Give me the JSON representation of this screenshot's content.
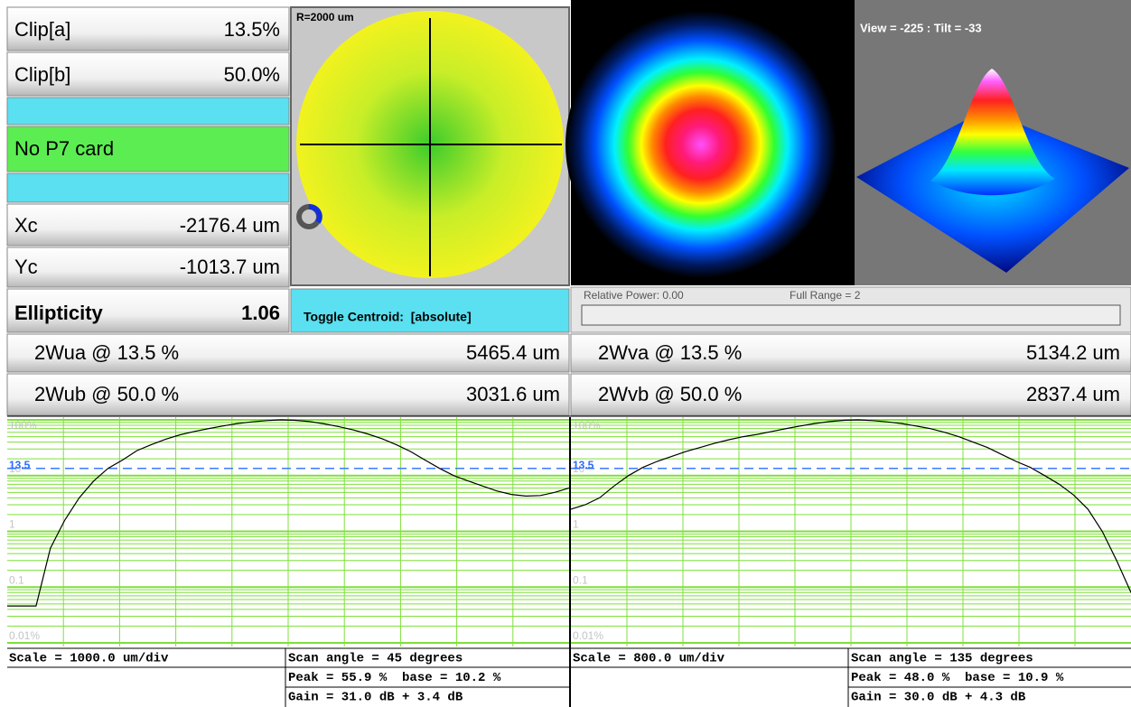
{
  "params": [
    {
      "label": "Clip[a]",
      "value": "13.5%"
    },
    {
      "label": "Clip[b]",
      "value": "50.0%"
    }
  ],
  "status": "No P7 card",
  "centroid": [
    {
      "label": "Xc",
      "value": "-2176.4 um"
    },
    {
      "label": "Yc",
      "value": "-1013.7 um"
    }
  ],
  "ellipticity": {
    "label": "Ellipticity",
    "value": "1.06"
  },
  "position_view": {
    "radius_label": "R=2000 um",
    "toggle": "Toggle Centroid:  [absolute]"
  },
  "view_3d": {
    "label": "View = -225 : Tilt = -33"
  },
  "power": {
    "relative": "Relative Power: 0.00",
    "range": "Full Range = 2"
  },
  "widths": [
    [
      {
        "label": "2Wua @ 13.5 %",
        "value": "5465.4 um"
      },
      {
        "label": "2Wub @ 50.0 %",
        "value": "3031.6 um"
      }
    ],
    [
      {
        "label": "2Wva @ 13.5 %",
        "value": "5134.2 um"
      },
      {
        "label": "2Wvb @ 50.0 %",
        "value": "2837.4 um"
      }
    ]
  ],
  "profiles": [
    {
      "type": "line",
      "yscale": "log",
      "ylim": [
        0.01,
        100
      ],
      "yticks": [
        {
          "value": 100,
          "label": "100%"
        },
        10,
        1,
        0.1,
        {
          "value": 0.01,
          "label": "0.01%"
        }
      ],
      "threshold": 13.5,
      "color": "#000000",
      "grid_color": "#7ee03a",
      "values": [
        0.046,
        0.046,
        0.046,
        0.5,
        1.6,
        4,
        8,
        13.5,
        19,
        28,
        36,
        45,
        54,
        62,
        70,
        78,
        86,
        92,
        97,
        100,
        98,
        93,
        85,
        76,
        66,
        56,
        46,
        36,
        27,
        19,
        13.5,
        10,
        8,
        6.5,
        5.3,
        4.6,
        4.3,
        4.4,
        5,
        6
      ],
      "scale": "Scale = 1000.0 um/div",
      "info": [
        "Scan angle = 45 degrees",
        "Peak = 55.9 %  base = 10.2 %",
        "Gain = 31.0 dB + 3.4 dB"
      ]
    },
    {
      "type": "line",
      "yscale": "log",
      "ylim": [
        0.01,
        100
      ],
      "yticks": [
        {
          "value": 100,
          "label": "100%"
        },
        10,
        1,
        0.1,
        {
          "value": 0.01,
          "label": "0.01%"
        }
      ],
      "threshold": 13.5,
      "color": "#000000",
      "grid_color": "#7ee03a",
      "values": [
        2.5,
        3,
        4,
        6.5,
        10,
        14,
        18,
        22,
        27,
        32,
        38,
        44,
        50,
        55,
        62,
        70,
        78,
        86,
        93,
        98,
        100,
        97,
        92,
        86,
        78,
        70,
        60,
        50,
        40,
        32,
        24,
        18,
        14,
        10,
        7,
        4.5,
        2.5,
        1,
        0.3,
        0.08
      ],
      "scale": "Scale = 800.0 um/div",
      "info": [
        "Scan angle = 135 degrees",
        "Peak = 48.0 %  base = 10.9 %",
        "Gain = 30.0 dB + 4.3 dB"
      ]
    }
  ]
}
